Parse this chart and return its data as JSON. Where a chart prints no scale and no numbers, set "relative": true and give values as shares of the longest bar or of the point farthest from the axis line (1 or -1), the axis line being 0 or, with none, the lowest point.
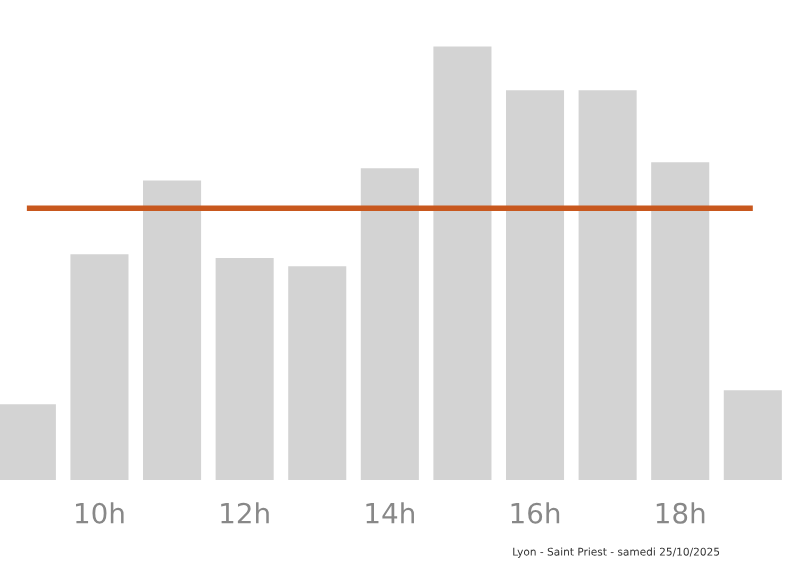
{
  "chart_data": {
    "type": "bar",
    "relative": true,
    "categories": [
      null,
      "10h",
      null,
      "12h",
      null,
      "14h",
      null,
      "16h",
      null,
      "18h",
      null
    ],
    "values": [
      0.175,
      0.521,
      0.691,
      0.512,
      0.493,
      0.719,
      1,
      0.899,
      0.899,
      0.733,
      0.207
    ],
    "color": "#d3d3d3",
    "ref_lines": [
      {
        "axis": "y",
        "value": 0.627,
        "label": null,
        "color": "#c8581e"
      }
    ],
    "annotations": [
      "Lyon - Saint Priest - samedi 25/10/2025"
    ],
    "grid": false,
    "legend": false
  }
}
